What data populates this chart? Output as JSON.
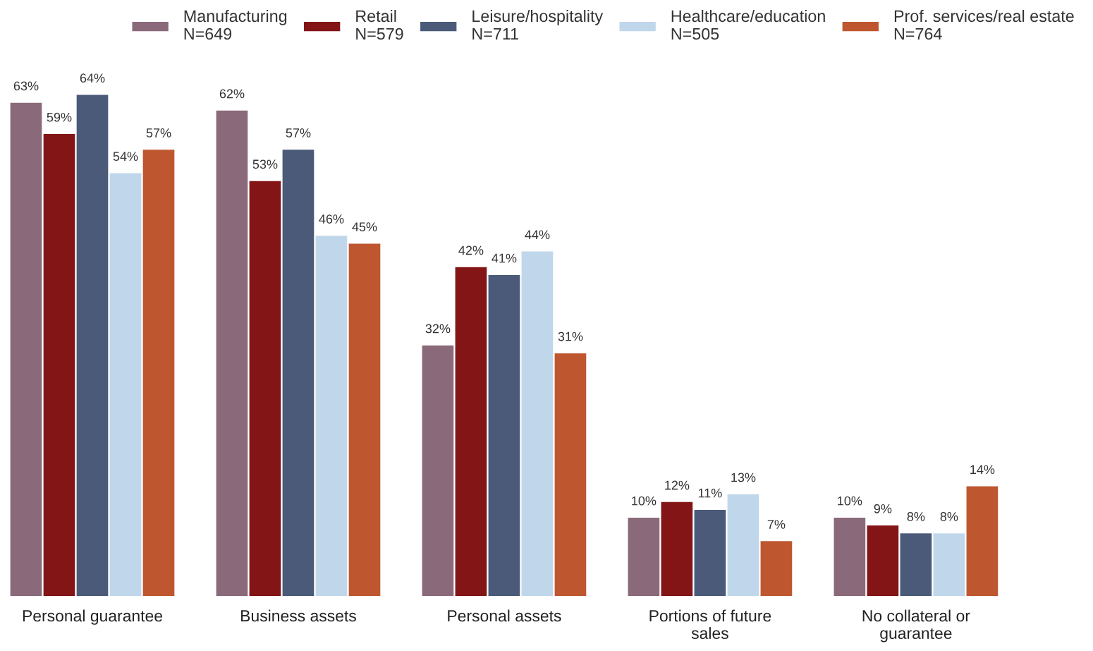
{
  "chart_data": {
    "type": "bar",
    "categories": [
      "Personal guarantee",
      "Business assets",
      "Personal assets",
      "Portions of future\nsales",
      "No collateral or\nguarantee"
    ],
    "series": [
      {
        "name": "Manufacturing\nN=649",
        "color": "#8a6a7a",
        "values": [
          63,
          62,
          32,
          10,
          10
        ],
        "value_labels": [
          "63%",
          "62%",
          "32%",
          "10%",
          "10%"
        ]
      },
      {
        "name": "Retail\nN=579",
        "color": "#831517",
        "values": [
          59,
          53,
          42,
          12,
          9
        ],
        "value_labels": [
          "59%",
          "53%",
          "42%",
          "12%",
          "9%"
        ]
      },
      {
        "name": "Leisure/hospitality\nN=711",
        "color": "#4a5a78",
        "values": [
          64,
          57,
          41,
          11,
          8
        ],
        "value_labels": [
          "64%",
          "57%",
          "41%",
          "11%",
          "8%"
        ]
      },
      {
        "name": "Healthcare/education\nN=505",
        "color": "#c0d7eb",
        "values": [
          54,
          46,
          44,
          13,
          8
        ],
        "value_labels": [
          "54%",
          "46%",
          "44%",
          "13%",
          "8%"
        ]
      },
      {
        "name": "Prof. services/real estate\nN=764",
        "color": "#be5730",
        "values": [
          57,
          45,
          31,
          7,
          14
        ],
        "value_labels": [
          "57%",
          "45%",
          "31%",
          "7%",
          "14%"
        ]
      }
    ],
    "tick_labels": "x",
    "grid": false,
    "legend": "top"
  }
}
